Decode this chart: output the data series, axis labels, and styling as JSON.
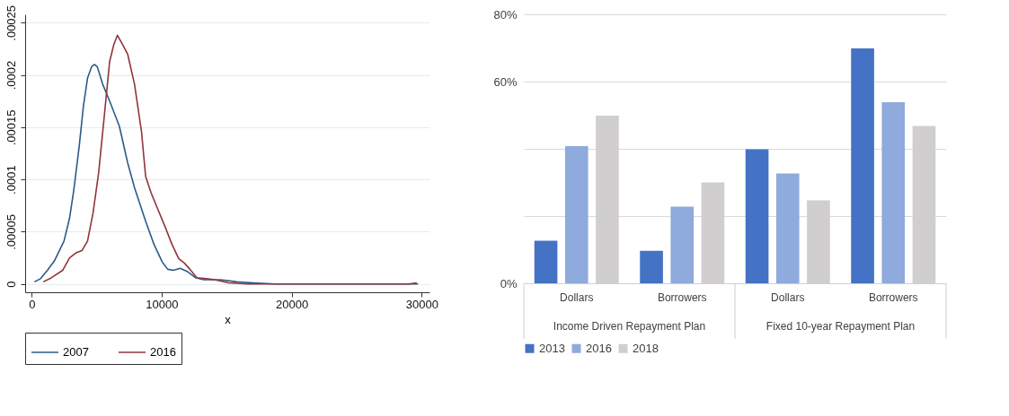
{
  "chart_data": [
    {
      "type": "line",
      "xlabel": "x",
      "xlim": [
        -500,
        30600
      ],
      "xticks": [
        0,
        10000,
        20000,
        30000
      ],
      "ylim": [
        -8e-06,
        0.000258
      ],
      "yticks": [
        {
          "value": 0,
          "label": "0"
        },
        {
          "value": 5e-05,
          "label": ".00005"
        },
        {
          "value": 0.0001,
          "label": ".0001"
        },
        {
          "value": 0.00015,
          "label": ".00015"
        },
        {
          "value": 0.0002,
          "label": ".0002"
        },
        {
          "value": 0.00025,
          "label": ".00025"
        }
      ],
      "grid": "y",
      "legend": "bottom",
      "series": [
        {
          "name": "2007",
          "color": "#2e5a87",
          "x": [
            213,
            681,
            1213,
            1745,
            2489,
            2915,
            3234,
            3660,
            3979,
            4298,
            4617,
            4830,
            5043,
            5468,
            6000,
            6745,
            7383,
            7915,
            8766,
            9404,
            10043,
            10468,
            10894,
            11426,
            11957,
            12596,
            13234,
            14511,
            15787,
            17064,
            18766,
            23021,
            25574,
            29723
          ],
          "values": [
            2e-06,
            5e-06,
            1.3e-05,
            2.2e-05,
            4.1e-05,
            6.3e-05,
            8.9e-05,
            0.000132,
            0.00017,
            0.000197,
            0.000208,
            0.00021,
            0.000208,
            0.000191,
            0.000175,
            0.000151,
            0.000116,
            9.2e-05,
            6e-05,
            3.8e-05,
            2.1e-05,
            1.4e-05,
            1.3e-05,
            1.5e-05,
            1.2e-05,
            6e-06,
            4e-06,
            4e-06,
            2e-06,
            1e-06,
            0,
            0,
            0,
            0
          ]
        },
        {
          "name": "2016",
          "color": "#90353b",
          "x": [
            894,
            1532,
            2383,
            2915,
            3447,
            3872,
            4298,
            4723,
            5149,
            5574,
            6000,
            6319,
            6596,
            6957,
            7383,
            7915,
            8447,
            8766,
            9191,
            9723,
            10255,
            10787,
            11319,
            11745,
            12170,
            12702,
            13447,
            14085,
            15149,
            16638,
            18766,
            25574,
            28979,
            29617
          ],
          "values": [
            2e-06,
            6e-06,
            1.3e-05,
            2.5e-05,
            3e-05,
            3.2e-05,
            4.1e-05,
            6.8e-05,
            0.000106,
            0.000159,
            0.000213,
            0.000229,
            0.000238,
            0.00023,
            0.00022,
            0.000191,
            0.000146,
            0.000103,
            8.7e-05,
            7.1e-05,
            5.5e-05,
            3.8e-05,
            2.4e-05,
            2e-05,
            1.4e-05,
            6e-06,
            5e-06,
            4e-06,
            1e-06,
            0,
            0,
            0,
            0,
            1e-06
          ]
        }
      ]
    },
    {
      "type": "bar",
      "categories": [
        "Dollars",
        "Borrowers",
        "Dollars",
        "Borrowers"
      ],
      "annotations": [
        "Income Driven Repayment Plan",
        "Fixed 10-year Repayment Plan"
      ],
      "ylim": [
        0,
        80
      ],
      "yticks": [
        {
          "value": 0,
          "label": "0%"
        },
        {
          "value": 20,
          "label": null
        },
        {
          "value": 40,
          "label": null
        },
        {
          "value": 60,
          "label": "60%"
        },
        {
          "value": 80,
          "label": "80%"
        }
      ],
      "grid": "y",
      "legend": "bottom",
      "series": [
        {
          "name": "2013",
          "color": "#4472c4",
          "values": [
            12.7,
            9.7,
            39.9,
            69.9
          ]
        },
        {
          "name": "2016",
          "color": "#8faadc",
          "values": [
            40.8,
            22.8,
            32.7,
            53.9
          ]
        },
        {
          "name": "2018",
          "color": "#d0cece",
          "values": [
            49.9,
            30.0,
            24.7,
            46.8
          ]
        }
      ]
    }
  ]
}
